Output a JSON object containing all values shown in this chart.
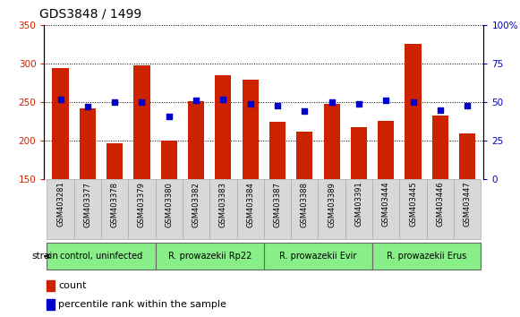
{
  "title": "GDS3848 / 1499",
  "samples": [
    "GSM403281",
    "GSM403377",
    "GSM403378",
    "GSM403379",
    "GSM403380",
    "GSM403382",
    "GSM403383",
    "GSM403384",
    "GSM403387",
    "GSM403388",
    "GSM403389",
    "GSM403391",
    "GSM403444",
    "GSM403445",
    "GSM403446",
    "GSM403447"
  ],
  "counts": [
    295,
    242,
    197,
    298,
    200,
    251,
    285,
    279,
    224,
    212,
    248,
    217,
    226,
    326,
    233,
    210
  ],
  "percentiles": [
    52,
    47,
    50,
    50,
    41,
    51,
    52,
    49,
    48,
    44,
    50,
    49,
    51,
    50,
    45,
    48
  ],
  "ylim_left": [
    150,
    350
  ],
  "ylim_right": [
    0,
    100
  ],
  "yticks_left": [
    150,
    200,
    250,
    300,
    350
  ],
  "yticks_right": [
    0,
    25,
    50,
    75,
    100
  ],
  "bar_color": "#cc2200",
  "dot_color": "#0000cc",
  "group_defs": [
    {
      "label": "control, uninfected",
      "indices": [
        0,
        1,
        2,
        3
      ],
      "color": "#88ee88"
    },
    {
      "label": "R. prowazekii Rp22",
      "indices": [
        4,
        5,
        6,
        7
      ],
      "color": "#88ee88"
    },
    {
      "label": "R. prowazekii Evir",
      "indices": [
        8,
        9,
        10,
        11
      ],
      "color": "#88ee88"
    },
    {
      "label": "R. prowazekii Erus",
      "indices": [
        12,
        13,
        14,
        15
      ],
      "color": "#88ee88"
    }
  ],
  "left_tick_color": "#cc2200",
  "right_tick_color": "#0000cc",
  "label_bg": "#d8d8d8",
  "label_border": "#aaaaaa"
}
